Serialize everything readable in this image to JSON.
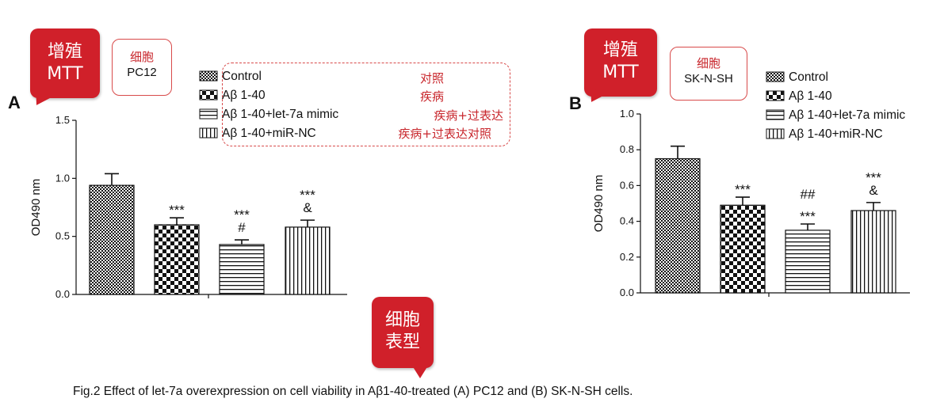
{
  "chart_data": [
    {
      "panel_label": "A",
      "type": "bar",
      "ylabel": "OD490 nm",
      "ylim": [
        0,
        1.5
      ],
      "yticks": [
        "0.0",
        "0.5",
        "1.0",
        "1.5"
      ],
      "legend": [
        "Control",
        "Aβ 1-40",
        "Aβ 1-40+let-7a mimic",
        "Aβ 1-40+miR-NC"
      ],
      "categories": [
        "Control",
        "Aβ 1-40",
        "Aβ 1-40+let-7a mimic",
        "Aβ 1-40+miR-NC"
      ],
      "values": [
        0.94,
        0.6,
        0.43,
        0.58
      ],
      "errors": [
        0.1,
        0.06,
        0.04,
        0.06
      ],
      "annotations": [
        [],
        [
          "***"
        ],
        [
          "#",
          "***"
        ],
        [
          "&",
          "***"
        ]
      ],
      "patterns": [
        "checker-fine",
        "checker-coarse",
        "horizontal-lines",
        "vertical-lines"
      ],
      "grid": false
    },
    {
      "panel_label": "B",
      "type": "bar",
      "ylabel": "OD490 nm",
      "ylim": [
        0,
        1.0
      ],
      "yticks": [
        "0.0",
        "0.2",
        "0.4",
        "0.6",
        "0.8",
        "1.0"
      ],
      "legend": [
        "Control",
        "Aβ 1-40",
        "Aβ 1-40+let-7a mimic",
        "Aβ 1-40+miR-NC"
      ],
      "categories": [
        "Control",
        "Aβ 1-40",
        "Aβ 1-40+let-7a mimic",
        "Aβ 1-40+miR-NC"
      ],
      "values": [
        0.75,
        0.49,
        0.35,
        0.46
      ],
      "errors": [
        0.07,
        0.045,
        0.035,
        0.045
      ],
      "annotations": [
        [],
        [
          "***"
        ],
        [
          "***",
          "##"
        ],
        [
          "&",
          "***"
        ]
      ],
      "patterns": [
        "checker-fine",
        "checker-coarse",
        "horizontal-lines",
        "vertical-lines"
      ],
      "grid": false
    }
  ],
  "callouts": {
    "mtt_a": [
      "增殖",
      "MTT"
    ],
    "cell_a": [
      "细胞",
      "PC12"
    ],
    "mtt_b": [
      "增殖",
      "MTT"
    ],
    "cell_b": [
      "细胞",
      "SK-N-SH"
    ],
    "phenotype": [
      "细胞",
      "表型"
    ],
    "legend_notes": [
      "对照",
      "疾病",
      "疾病+过表达",
      "疾病+过表达对照"
    ]
  },
  "caption": "Fig.2 Effect of let-7a overexpression on cell viability in Aβ1-40-treated (A) PC12 and (B) SK-N-SH cells.",
  "colors": {
    "callout_red": "#d0202a",
    "annotation_red": "#c8262c"
  }
}
